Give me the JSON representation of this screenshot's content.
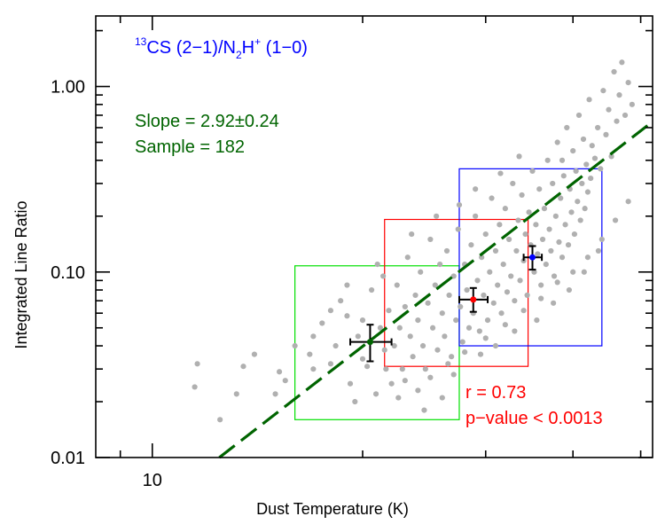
{
  "chart_data": {
    "type": "scatter",
    "title": "",
    "panel_label": {
      "prefix": "13",
      "main": "CS (2−1)/N",
      "sub": "2",
      "mid": "H",
      "sup": "+",
      "tail": " (1−0)",
      "color": "#0000ff"
    },
    "xlabel": "Dust Temperature (K)",
    "ylabel": "Integrated Line Ratio",
    "xscale": "log",
    "yscale": "log",
    "xlim": [
      8.3,
      52
    ],
    "ylim": [
      0.01,
      2.4
    ],
    "xticks": [
      {
        "value": 10,
        "label": "10"
      }
    ],
    "x_minor_ticks": [
      9,
      20,
      30,
      40,
      50
    ],
    "yticks": [
      {
        "value": 0.01,
        "label": "0.01"
      },
      {
        "value": 0.1,
        "label": "0.10"
      },
      {
        "value": 1.0,
        "label": "1.00"
      }
    ],
    "y_minor_ticks": [
      0.02,
      0.03,
      0.04,
      0.05,
      0.06,
      0.07,
      0.08,
      0.09,
      0.2,
      0.3,
      0.4,
      0.5,
      0.6,
      0.7,
      0.8,
      0.9,
      2.0
    ],
    "annotations": {
      "slope": "Slope = 2.92±0.24",
      "sample": "Sample = 182",
      "stats_color": "#006400",
      "r": "r = 0.73",
      "pvalue": "p−value < 0.0013",
      "r_color": "#ff0000"
    },
    "fit_line": {
      "slope": 2.92,
      "intercept": -5.2,
      "color": "#006400",
      "style": "dashed"
    },
    "boxes": [
      {
        "name": "green",
        "color": "#00e000",
        "x": [
          16.0,
          27.5
        ],
        "y": [
          0.016,
          0.108
        ]
      },
      {
        "name": "red",
        "color": "#ff0000",
        "x": [
          21.5,
          34.5
        ],
        "y": [
          0.031,
          0.192
        ]
      },
      {
        "name": "blue",
        "color": "#0000ff",
        "x": [
          27.5,
          44.0
        ],
        "y": [
          0.04,
          0.36
        ]
      }
    ],
    "binned_points": [
      {
        "name": "green",
        "color": "#006400",
        "x": 20.5,
        "y": 0.042,
        "xerr": [
          19.2,
          22.0
        ],
        "yerr": [
          0.033,
          0.052
        ]
      },
      {
        "name": "red",
        "color": "#ff0000",
        "x": 28.8,
        "y": 0.071,
        "xerr": [
          27.5,
          30.2
        ],
        "yerr": [
          0.061,
          0.082
        ]
      },
      {
        "name": "blue",
        "color": "#0000ff",
        "x": 35.0,
        "y": 0.12,
        "xerr": [
          34.0,
          36.1
        ],
        "yerr": [
          0.103,
          0.138
        ]
      }
    ],
    "scatter_color": "#b0b0b0",
    "scatter_points": [
      [
        11.5,
        0.024
      ],
      [
        11.6,
        0.032
      ],
      [
        12.5,
        0.016
      ],
      [
        13.5,
        0.031
      ],
      [
        13.2,
        0.022
      ],
      [
        14.0,
        0.036
      ],
      [
        15.0,
        0.022
      ],
      [
        15.2,
        0.029
      ],
      [
        16.8,
        0.036
      ],
      [
        17.0,
        0.03
      ],
      [
        17.5,
        0.053
      ],
      [
        18.0,
        0.032
      ],
      [
        18.3,
        0.04
      ],
      [
        18.6,
        0.07
      ],
      [
        19.0,
        0.058
      ],
      [
        19.2,
        0.025
      ],
      [
        19.5,
        0.02
      ],
      [
        19.7,
        0.045
      ],
      [
        20.0,
        0.055
      ],
      [
        20.3,
        0.031
      ],
      [
        20.6,
        0.08
      ],
      [
        20.9,
        0.022
      ],
      [
        21.2,
        0.05
      ],
      [
        21.4,
        0.095
      ],
      [
        21.6,
        0.03
      ],
      [
        21.8,
        0.062
      ],
      [
        22.0,
        0.025
      ],
      [
        22.2,
        0.04
      ],
      [
        22.4,
        0.085
      ],
      [
        22.6,
        0.05
      ],
      [
        22.8,
        0.03
      ],
      [
        23.0,
        0.065
      ],
      [
        23.2,
        0.12
      ],
      [
        23.4,
        0.045
      ],
      [
        23.6,
        0.035
      ],
      [
        23.8,
        0.075
      ],
      [
        24.0,
        0.055
      ],
      [
        24.2,
        0.1
      ],
      [
        24.4,
        0.04
      ],
      [
        24.6,
        0.03
      ],
      [
        24.8,
        0.068
      ],
      [
        25.0,
        0.15
      ],
      [
        25.2,
        0.05
      ],
      [
        25.4,
        0.085
      ],
      [
        25.6,
        0.038
      ],
      [
        25.8,
        0.11
      ],
      [
        26.0,
        0.06
      ],
      [
        26.2,
        0.045
      ],
      [
        26.4,
        0.13
      ],
      [
        26.6,
        0.075
      ],
      [
        26.8,
        0.035
      ],
      [
        27.0,
        0.095
      ],
      [
        27.2,
        0.055
      ],
      [
        27.4,
        0.17
      ],
      [
        27.6,
        0.065
      ],
      [
        27.8,
        0.042
      ],
      [
        28.0,
        0.11
      ],
      [
        28.2,
        0.08
      ],
      [
        28.4,
        0.05
      ],
      [
        28.6,
        0.14
      ],
      [
        28.8,
        0.06
      ],
      [
        29.0,
        0.2
      ],
      [
        29.2,
        0.09
      ],
      [
        29.4,
        0.048
      ],
      [
        29.6,
        0.12
      ],
      [
        29.8,
        0.075
      ],
      [
        30.0,
        0.16
      ],
      [
        30.2,
        0.055
      ],
      [
        30.4,
        0.1
      ],
      [
        30.6,
        0.25
      ],
      [
        30.8,
        0.068
      ],
      [
        31.0,
        0.13
      ],
      [
        31.2,
        0.085
      ],
      [
        31.4,
        0.18
      ],
      [
        31.6,
        0.06
      ],
      [
        31.8,
        0.11
      ],
      [
        32.0,
        0.22
      ],
      [
        32.2,
        0.078
      ],
      [
        32.4,
        0.15
      ],
      [
        32.6,
        0.095
      ],
      [
        32.8,
        0.3
      ],
      [
        33.0,
        0.07
      ],
      [
        33.2,
        0.13
      ],
      [
        33.4,
        0.19
      ],
      [
        33.6,
        0.09
      ],
      [
        33.8,
        0.26
      ],
      [
        34.0,
        0.115
      ],
      [
        34.2,
        0.16
      ],
      [
        34.4,
        0.075
      ],
      [
        34.6,
        0.21
      ],
      [
        34.8,
        0.14
      ],
      [
        35.0,
        0.35
      ],
      [
        35.2,
        0.1
      ],
      [
        35.4,
        0.18
      ],
      [
        35.6,
        0.125
      ],
      [
        35.8,
        0.28
      ],
      [
        36.0,
        0.085
      ],
      [
        36.2,
        0.15
      ],
      [
        36.4,
        0.22
      ],
      [
        36.6,
        0.11
      ],
      [
        36.8,
        0.4
      ],
      [
        37.0,
        0.17
      ],
      [
        37.2,
        0.13
      ],
      [
        37.4,
        0.3
      ],
      [
        37.6,
        0.095
      ],
      [
        37.8,
        0.2
      ],
      [
        38.0,
        0.5
      ],
      [
        38.2,
        0.145
      ],
      [
        38.4,
        0.25
      ],
      [
        38.6,
        0.12
      ],
      [
        38.8,
        0.33
      ],
      [
        39.0,
        0.18
      ],
      [
        39.2,
        0.6
      ],
      [
        39.4,
        0.14
      ],
      [
        39.6,
        0.28
      ],
      [
        39.8,
        0.21
      ],
      [
        40.0,
        0.45
      ],
      [
        40.2,
        0.16
      ],
      [
        40.4,
        0.35
      ],
      [
        40.6,
        0.24
      ],
      [
        40.8,
        0.7
      ],
      [
        41.0,
        0.19
      ],
      [
        41.2,
        0.3
      ],
      [
        41.4,
        0.52
      ],
      [
        41.6,
        0.22
      ],
      [
        41.8,
        0.38
      ],
      [
        42.0,
        0.27
      ],
      [
        42.2,
        0.85
      ],
      [
        42.4,
        0.32
      ],
      [
        42.6,
        0.48
      ],
      [
        43.0,
        0.41
      ],
      [
        43.4,
        0.6
      ],
      [
        43.8,
        0.36
      ],
      [
        44.2,
        0.95
      ],
      [
        44.6,
        0.55
      ],
      [
        45.0,
        0.75
      ],
      [
        45.4,
        0.42
      ],
      [
        45.8,
        1.2
      ],
      [
        46.2,
        0.65
      ],
      [
        46.6,
        0.9
      ],
      [
        47.0,
        1.35
      ],
      [
        47.5,
        0.7
      ],
      [
        48.0,
        1.05
      ],
      [
        48.6,
        0.8
      ],
      [
        26.0,
        0.021
      ],
      [
        27.0,
        0.028
      ],
      [
        24.5,
        0.018
      ],
      [
        22.5,
        0.021
      ],
      [
        29.5,
        0.036
      ],
      [
        31.0,
        0.04
      ],
      [
        33.0,
        0.048
      ],
      [
        35.5,
        0.055
      ],
      [
        37.5,
        0.068
      ],
      [
        39.5,
        0.08
      ],
      [
        41.5,
        0.1
      ],
      [
        43.5,
        0.13
      ],
      [
        21.0,
        0.11
      ],
      [
        19.0,
        0.085
      ],
      [
        18.0,
        0.062
      ],
      [
        17.0,
        0.045
      ],
      [
        16.0,
        0.04
      ],
      [
        15.5,
        0.026
      ],
      [
        23.5,
        0.16
      ],
      [
        25.5,
        0.2
      ],
      [
        27.5,
        0.23
      ],
      [
        29.0,
        0.28
      ],
      [
        31.5,
        0.34
      ],
      [
        33.5,
        0.42
      ],
      [
        20.0,
        0.034
      ],
      [
        21.5,
        0.038
      ],
      [
        23.0,
        0.026
      ],
      [
        24.0,
        0.023
      ],
      [
        25.0,
        0.027
      ],
      [
        26.5,
        0.032
      ],
      [
        28.0,
        0.037
      ],
      [
        30.0,
        0.044
      ],
      [
        32.0,
        0.052
      ],
      [
        34.0,
        0.062
      ],
      [
        36.0,
        0.072
      ],
      [
        38.0,
        0.088
      ],
      [
        40.0,
        0.1
      ],
      [
        42.0,
        0.12
      ],
      [
        44.0,
        0.15
      ],
      [
        46.0,
        0.19
      ],
      [
        48.0,
        0.24
      ],
      [
        38.6,
        0.4
      ]
    ]
  }
}
